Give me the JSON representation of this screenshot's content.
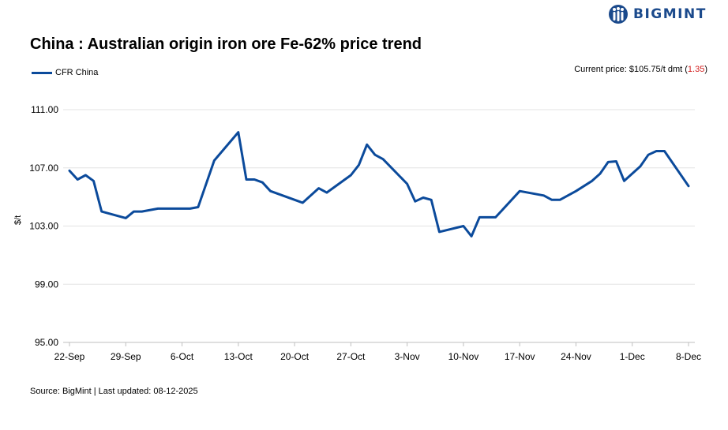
{
  "brand": {
    "name": "BIGMINT"
  },
  "title": "China : Australian origin iron ore Fe-62% price trend",
  "current_price": {
    "label": "Current price: $105.75/t dmt (",
    "change": "1.35",
    "close": ")"
  },
  "source": "Source: BigMint | Last updated: 08-12-2025",
  "colors": {
    "line": "#0b4a9b",
    "brand": "#1b4a8c",
    "change": "#d21f1f",
    "grid": "#e3e3e3"
  },
  "chart_data": {
    "type": "line",
    "title": "China : Australian origin iron ore Fe-62% price trend",
    "xlabel": "",
    "ylabel": "$/t",
    "ylim": [
      95,
      111
    ],
    "yticks": [
      "95.00",
      "99.00",
      "103.00",
      "107.00",
      "111.00"
    ],
    "ytick_values": [
      95,
      99,
      103,
      107,
      111
    ],
    "xlim": [
      0,
      77
    ],
    "x_tick_labels": [
      "22-Sep",
      "29-Sep",
      "6-Oct",
      "13-Oct",
      "20-Oct",
      "27-Oct",
      "3-Nov",
      "10-Nov",
      "17-Nov",
      "24-Nov",
      "1-Dec",
      "8-Dec"
    ],
    "x_tick_days": [
      0,
      7,
      14,
      21,
      28,
      35,
      42,
      49,
      56,
      63,
      70,
      77
    ],
    "legend": "top-left",
    "series": [
      {
        "name": "CFR China",
        "x": [
          0,
          1,
          2,
          3,
          4,
          7,
          8,
          9,
          11,
          14,
          15,
          16,
          18,
          21,
          22,
          23,
          24,
          25,
          29,
          31,
          32,
          35,
          36,
          37,
          38,
          39,
          42,
          43,
          44,
          45,
          46,
          49,
          50,
          51,
          53,
          56,
          59,
          60,
          61,
          63,
          65,
          66,
          67,
          68,
          69,
          71,
          72,
          73,
          74,
          77
        ],
        "y": [
          106.8,
          106.2,
          106.5,
          106.1,
          104.0,
          103.55,
          104.0,
          104.0,
          104.2,
          104.2,
          104.2,
          104.3,
          107.5,
          109.45,
          106.2,
          106.2,
          106.0,
          105.4,
          104.6,
          105.6,
          105.3,
          106.5,
          107.2,
          108.6,
          107.9,
          107.6,
          105.9,
          104.7,
          104.95,
          104.8,
          102.6,
          103.0,
          102.3,
          103.6,
          103.6,
          105.4,
          105.1,
          104.8,
          104.8,
          105.4,
          106.1,
          106.6,
          107.4,
          107.45,
          106.1,
          107.1,
          107.9,
          108.15,
          108.15,
          105.75
        ]
      }
    ]
  }
}
